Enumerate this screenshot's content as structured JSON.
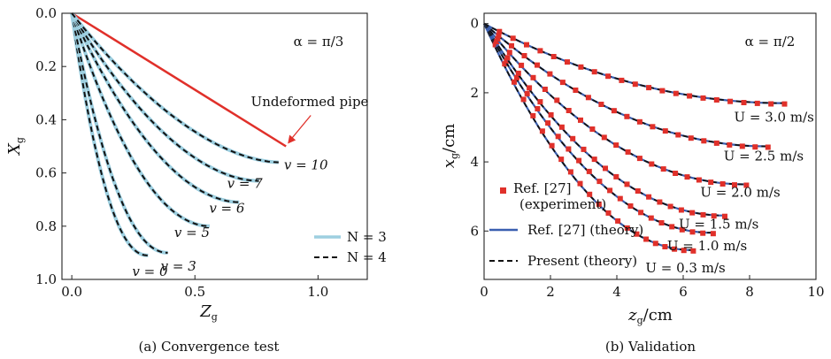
{
  "chart_data": [
    {
      "type": "line",
      "caption": "(a) Convergence test",
      "xlabel": "Z",
      "xlabel_sub": "g",
      "ylabel": "X",
      "ylabel_sub": "g",
      "xlim": [
        -0.04,
        1.2
      ],
      "ylim": [
        0.0,
        1.0
      ],
      "y_inverted": true,
      "xticks": [
        "0.0",
        "0.5",
        "1.0"
      ],
      "xtick_values": [
        0.0,
        0.5,
        1.0
      ],
      "yticks": [
        "0.0",
        "0.2",
        "0.4",
        "0.6",
        "0.8",
        "1.0"
      ],
      "ytick_values": [
        0.0,
        0.2,
        0.4,
        0.6,
        0.8,
        1.0
      ],
      "angle_label": "α = π/3",
      "legend_position": "bottom-right",
      "legend": [
        {
          "label": "N = 3",
          "style": "solid",
          "color": "#9dcfe0"
        },
        {
          "label": "N = 4",
          "style": "dashed",
          "color": "#111111"
        }
      ],
      "undeformed": {
        "label": "Undeformed pipe",
        "color": "#e0302a",
        "x": [
          0.0,
          0.87
        ],
        "y": [
          0.0,
          0.5
        ]
      },
      "series": [
        {
          "name": "v = 0",
          "end": [
            0.31,
            0.91
          ]
        },
        {
          "name": "v = 3",
          "end": [
            0.39,
            0.9
          ]
        },
        {
          "name": "v = 5",
          "end": [
            0.56,
            0.8
          ]
        },
        {
          "name": "v = 6",
          "end": [
            0.68,
            0.71
          ]
        },
        {
          "name": "v = 7",
          "end": [
            0.76,
            0.63
          ]
        },
        {
          "name": "v = 10",
          "end": [
            0.84,
            0.56
          ]
        }
      ]
    },
    {
      "type": "scatter",
      "caption": "(b) Validation",
      "xlabel": "z",
      "xlabel_sub": "g",
      "xlabel_unit": "/cm",
      "ylabel": "x",
      "ylabel_sub": "g",
      "ylabel_unit": "/cm",
      "xlim": [
        0,
        10
      ],
      "ylim": [
        -0.3,
        7.4
      ],
      "y_inverted": true,
      "xticks": [
        "0",
        "2",
        "4",
        "6",
        "8",
        "10"
      ],
      "xtick_values": [
        0,
        2,
        4,
        6,
        8,
        10
      ],
      "yticks": [
        "0",
        "2",
        "4",
        "6"
      ],
      "ytick_values": [
        0,
        2,
        4,
        6
      ],
      "angle_label": "α = π/2",
      "legend_position": "bottom-left",
      "legend": [
        {
          "label": "Ref. [27]",
          "label2": "(experiment)",
          "style": "marker",
          "color": "#e0302a"
        },
        {
          "label": "Ref. [27] (theory)",
          "style": "solid",
          "color": "#3a5fb0"
        },
        {
          "label": "Present (theory)",
          "style": "dashed",
          "color": "#111111"
        }
      ],
      "series": [
        {
          "name": "U = 0.3 m/s",
          "end": [
            6.25,
            6.55
          ]
        },
        {
          "name": "U = 1.0 m/s",
          "end": [
            6.85,
            6.05
          ]
        },
        {
          "name": "U = 1.5 m/s",
          "end": [
            7.2,
            5.55
          ]
        },
        {
          "name": "U = 2.0 m/s",
          "end": [
            7.85,
            4.65
          ]
        },
        {
          "name": "U = 2.5 m/s",
          "end": [
            8.5,
            3.55
          ]
        },
        {
          "name": "U = 3.0 m/s",
          "end": [
            9.0,
            2.3
          ]
        }
      ]
    }
  ]
}
